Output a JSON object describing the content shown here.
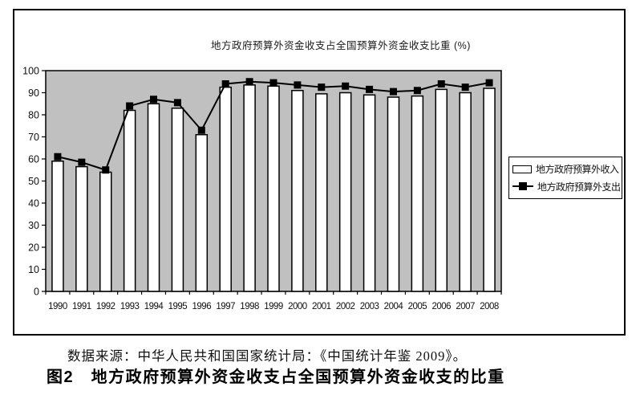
{
  "figure": {
    "source_note": "数据来源：中华人民共和国国家统计局：《中国统计年鉴 2009》。",
    "caption": "图2　地方政府预算外资金收支占全国预算外资金收支的比重"
  },
  "chart_data": {
    "type": "bar",
    "title": "地方政府预算外资金收支占全国预算外资金收支比重 (%)",
    "categories": [
      "1990",
      "1991",
      "1992",
      "1993",
      "1994",
      "1995",
      "1996",
      "1997",
      "1998",
      "1999",
      "2000",
      "2001",
      "2002",
      "2003",
      "2004",
      "2005",
      "2006",
      "2007",
      "2008"
    ],
    "series": [
      {
        "name": "地方政府预算外收入",
        "type": "bar",
        "color": "#ffffff",
        "border_color": "#000000",
        "values": [
          59,
          56.5,
          54,
          82,
          85,
          83,
          71,
          92.5,
          93.5,
          93,
          91,
          89.5,
          90,
          89,
          88,
          88.5,
          91.5,
          90,
          92
        ]
      },
      {
        "name": "地方政府预算外支出",
        "type": "line",
        "color": "#000000",
        "marker": "square",
        "values": [
          61,
          58.5,
          55,
          84,
          87,
          85.5,
          73,
          94,
          95,
          94.5,
          93.5,
          92.5,
          93,
          91.5,
          90.5,
          91,
          94,
          92.5,
          94.5
        ]
      }
    ],
    "xlabel": "",
    "ylabel": "",
    "ylim": [
      0,
      100
    ],
    "ytick_step": 10,
    "grid": false,
    "legend_position": "right",
    "plot_background": "#c0c0c0",
    "axis_color": "#000000"
  }
}
